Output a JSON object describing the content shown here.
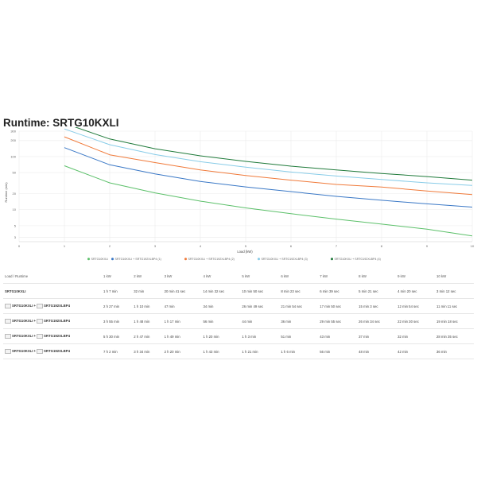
{
  "page": {
    "title": "Runtime: SRTG10KXLI"
  },
  "chart_data": {
    "type": "line",
    "title": "",
    "xlabel": "Load (kW)",
    "ylabel": "Runtime (min)",
    "xlim": [
      0,
      10
    ],
    "ylim": [
      2.5,
      300
    ],
    "yscale": "log",
    "xticks": [
      0,
      1,
      2,
      3,
      4,
      5,
      6,
      7,
      8,
      9,
      10
    ],
    "yticks": [
      3,
      5,
      10,
      20,
      50,
      100,
      200,
      300
    ],
    "grid": true,
    "legend_position": "bottom",
    "x": [
      1,
      2,
      3,
      4,
      5,
      6,
      7,
      8,
      9,
      10
    ],
    "series": [
      {
        "name": "SRTG10KXLI",
        "color": "#5cc06a",
        "values": [
          67.1,
          32,
          20.7,
          14.5,
          10.8,
          8.4,
          6.65,
          5.35,
          4.3,
          3.2
        ]
      },
      {
        "name": "SRTG10KXLI + SRTG192XLBP4 (1)",
        "color": "#3a78c6",
        "values": [
          147,
          70,
          47,
          34,
          26.8,
          21.9,
          17.8,
          15.05,
          12.9,
          11.2
        ]
      },
      {
        "name": "SRTG10KXLI + SRTG192XLBP4 (2)",
        "color": "#f07a3a",
        "values": [
          235,
          108,
          77,
          56,
          44,
          36,
          29.9,
          26.6,
          22.5,
          19.3
        ]
      },
      {
        "name": "SRTG10KXLI + SRTG192XLBP4 (3)",
        "color": "#88cce8",
        "values": [
          330,
          167,
          109,
          80,
          63,
          51,
          43,
          37,
          32,
          28.6
        ]
      },
      {
        "name": "SRTG10KXLI + SRTG192XLBP4 (4)",
        "color": "#1f7a3a",
        "values": [
          422,
          214,
          140,
          103,
          81,
          66,
          56,
          48,
          42,
          36
        ]
      }
    ]
  },
  "table": {
    "header_label": "Load / Runtime",
    "columns": [
      "1 kW",
      "2 kW",
      "3 kW",
      "4 kW",
      "5 kW",
      "6 kW",
      "7 kW",
      "8 kW",
      "9 kW",
      "10 kW"
    ],
    "rows": [
      {
        "ups": "SRTG10KXLI",
        "battery": "",
        "count": "",
        "values": [
          "1 h 7 min",
          "32 min",
          "20 min 41 sec",
          "14 min 32 sec",
          "10 min 50 sec",
          "8 min 23 sec",
          "6 min 39 sec",
          "5 min 21 sec",
          "4 min 20 sec",
          "3 min 12 sec"
        ]
      },
      {
        "ups": "SRTG10KXLI",
        "battery": "SRTG192XLBP4",
        "count": "1x",
        "values": [
          "2 h 27 min",
          "1 h 10 min",
          "47 min",
          "34 min",
          "26 min 49 sec",
          "21 min 54 sec",
          "17 min 50 sec",
          "15 min 3 sec",
          "12 min 54 sec",
          "11 min 11 sec"
        ]
      },
      {
        "ups": "SRTG10KXLI",
        "battery": "SRTG192XLBP4",
        "count": "2x",
        "values": [
          "3 h 55 min",
          "1 h 48 min",
          "1 h 17 min",
          "56 min",
          "44 min",
          "36 min",
          "29 min 55 sec",
          "26 min 34 sec",
          "22 min 30 sec",
          "19 min 18 sec"
        ]
      },
      {
        "ups": "SRTG10KXLI",
        "battery": "SRTG192XLBP4",
        "count": "3x",
        "values": [
          "5 h 30 min",
          "2 h 47 min",
          "1 h 49 min",
          "1 h 20 min",
          "1 h 3 min",
          "51 min",
          "43 min",
          "37 min",
          "32 min",
          "28 min 35 sec"
        ]
      },
      {
        "ups": "SRTG10KXLI",
        "battery": "SRTG192XLBP4",
        "count": "4x",
        "values": [
          "7 h 2 min",
          "3 h 34 min",
          "2 h 20 min",
          "1 h 43 min",
          "1 h 21 min",
          "1 h 6 min",
          "56 min",
          "48 min",
          "42 min",
          "36 min"
        ]
      }
    ]
  }
}
